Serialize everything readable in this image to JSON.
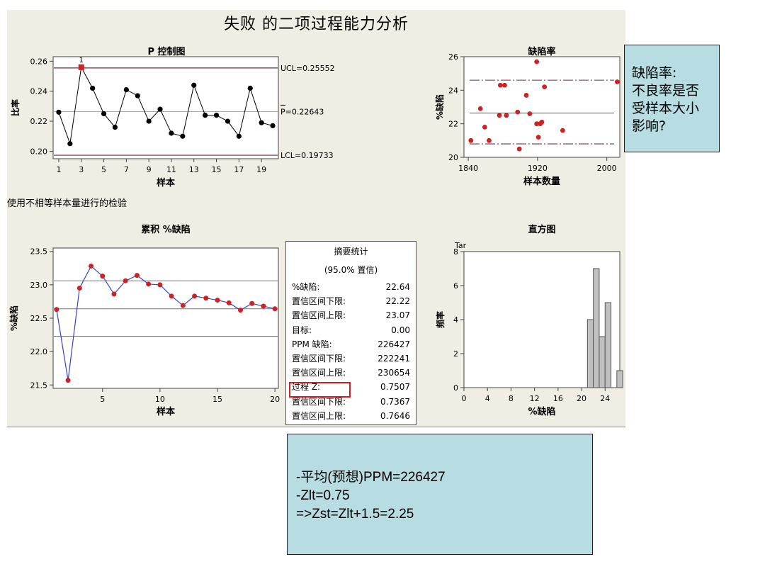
{
  "title": "失败 的二项过程能力分析",
  "note": "使用不相等样本量进行的检验",
  "chart_data": [
    {
      "type": "line",
      "title": "P 控制图",
      "xlabel": "样本",
      "ylabel": "比率",
      "x": [
        1,
        2,
        3,
        4,
        5,
        6,
        7,
        8,
        9,
        10,
        11,
        12,
        13,
        14,
        15,
        16,
        17,
        18,
        19,
        20
      ],
      "values": [
        0.226,
        0.205,
        0.256,
        0.242,
        0.225,
        0.216,
        0.241,
        0.237,
        0.22,
        0.228,
        0.212,
        0.21,
        0.244,
        0.224,
        0.224,
        0.22,
        0.21,
        0.242,
        0.219,
        0.217
      ],
      "xticks": [
        "1",
        "3",
        "5",
        "7",
        "9",
        "11",
        "13",
        "15",
        "17",
        "19"
      ],
      "yticks": [
        "0.20",
        "0.22",
        "0.24",
        "0.26"
      ],
      "xlim": [
        0.5,
        20.5
      ],
      "ylim": [
        0.195,
        0.263
      ],
      "ucl": 0.25552,
      "center": 0.22643,
      "lcl": 0.19733,
      "ucl_label": "UCL=0.25552",
      "center_label": "P=0.22643",
      "lcl_label": "LCL=0.19733",
      "flag_point": 3,
      "flag_label": "1",
      "point_color": "#000000",
      "flag_color": "#cc2222"
    },
    {
      "type": "scatter",
      "title": "缺陷率",
      "xlabel": "样本数量",
      "ylabel": "%缺陷",
      "xticks": [
        "1840",
        "1920",
        "2000"
      ],
      "yticks": [
        "20",
        "22",
        "24",
        "26"
      ],
      "xlim": [
        1835,
        2015
      ],
      "ylim": [
        20,
        26
      ],
      "center": 22.64,
      "upper": 24.6,
      "lower": 20.8,
      "points": [
        {
          "x": 1843,
          "y": 21.0
        },
        {
          "x": 1854,
          "y": 22.9
        },
        {
          "x": 1859,
          "y": 21.8
        },
        {
          "x": 1864,
          "y": 21.0
        },
        {
          "x": 1876,
          "y": 22.5
        },
        {
          "x": 1877,
          "y": 24.3
        },
        {
          "x": 1882,
          "y": 24.3
        },
        {
          "x": 1884,
          "y": 22.5
        },
        {
          "x": 1897,
          "y": 22.7
        },
        {
          "x": 1899,
          "y": 20.5
        },
        {
          "x": 1907,
          "y": 23.7
        },
        {
          "x": 1911,
          "y": 22.6
        },
        {
          "x": 1919,
          "y": 25.7
        },
        {
          "x": 1919,
          "y": 22.0
        },
        {
          "x": 1921,
          "y": 21.2
        },
        {
          "x": 1923,
          "y": 22.0
        },
        {
          "x": 1925,
          "y": 22.1
        },
        {
          "x": 1928,
          "y": 24.2
        },
        {
          "x": 1949,
          "y": 21.6
        },
        {
          "x": 2012,
          "y": 24.5
        }
      ],
      "point_color": "#cc2222"
    },
    {
      "type": "line",
      "title": "累积 %缺陷",
      "xlabel": "样本",
      "ylabel": "%缺陷",
      "x": [
        1,
        2,
        3,
        4,
        5,
        6,
        7,
        8,
        9,
        10,
        11,
        12,
        13,
        14,
        15,
        16,
        17,
        18,
        19,
        20
      ],
      "values": [
        22.63,
        21.57,
        22.95,
        23.28,
        23.13,
        22.86,
        23.06,
        23.14,
        23.01,
        23.0,
        22.83,
        22.69,
        22.83,
        22.8,
        22.77,
        22.73,
        22.62,
        22.72,
        22.68,
        22.64
      ],
      "xticks": [
        "5",
        "10",
        "15",
        "20"
      ],
      "yticks": [
        "21.5",
        "22.0",
        "22.5",
        "23.0",
        "23.5"
      ],
      "xlim": [
        0.7,
        20.3
      ],
      "ylim": [
        21.45,
        23.55
      ],
      "hlines": [
        23.06,
        22.64,
        22.23
      ],
      "point_color": "#cc2222"
    },
    {
      "type": "bar",
      "title": "直方图",
      "xlabel": "%缺陷",
      "ylabel": "频率",
      "corner_label": "Tar",
      "xticks": [
        "0",
        "4",
        "8",
        "12",
        "16",
        "20",
        "24"
      ],
      "yticks": [
        "0",
        "2",
        "4",
        "6",
        "8"
      ],
      "xlim": [
        0,
        26.5
      ],
      "ylim": [
        0,
        8
      ],
      "bins": [
        {
          "start": 21,
          "end": 22,
          "count": 4
        },
        {
          "start": 22,
          "end": 23,
          "count": 7
        },
        {
          "start": 23,
          "end": 24,
          "count": 3
        },
        {
          "start": 24,
          "end": 25,
          "count": 5
        },
        {
          "start": 25,
          "end": 26,
          "count": 0
        },
        {
          "start": 26,
          "end": 27,
          "count": 1
        }
      ],
      "bar_color": "#c0c0c0"
    }
  ],
  "summary": {
    "title": "摘要统计",
    "subtitle": "(95.0% 置信)",
    "rows": [
      {
        "label": "%缺陷:",
        "value": "22.64"
      },
      {
        "label": "置信区间下限:",
        "value": "22.22"
      },
      {
        "label": "置信区间上限:",
        "value": "23.07"
      },
      {
        "label": "目标:",
        "value": "0.00"
      },
      {
        "label": "PPM 缺陷:",
        "value": "226427"
      },
      {
        "label": "置信区间下限:",
        "value": "222241"
      },
      {
        "label": "置信区间上限:",
        "value": "230654"
      },
      {
        "label": "过程 Z:",
        "value": "0.7507"
      },
      {
        "label": "置信区间下限:",
        "value": "0.7367"
      },
      {
        "label": "置信区间上限:",
        "value": "0.7646"
      }
    ],
    "highlight_color": "#cc2222"
  },
  "callout_right": {
    "lines": [
      "缺陷率:",
      "不良率是否",
      "受样本大小",
      "影响?"
    ]
  },
  "callout_bottom": {
    "lines": [
      "-平均(预想)PPM=226427",
      "-Zlt=0.75",
      "=>Zst=Zlt+1.5=2.25"
    ]
  },
  "colors": {
    "panel": "#f0ede5",
    "callout": "#b7dde2",
    "red": "#cc2222",
    "green": "#7ec97e",
    "limit": "#7a2a3a"
  }
}
